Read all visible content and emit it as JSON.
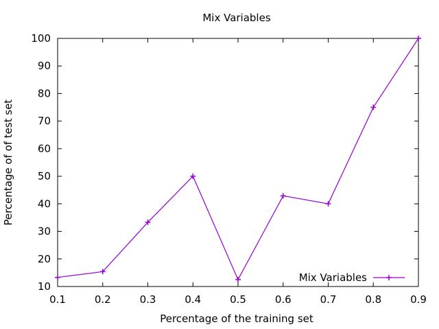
{
  "chart_data": {
    "type": "line",
    "title": "Mix Variables",
    "xlabel": "Percentage of the training set",
    "ylabel": "Percentage of of test set",
    "xlim": [
      0.1,
      0.9
    ],
    "ylim": [
      10,
      100
    ],
    "x_ticks": [
      "0.1",
      "0.2",
      "0.3",
      "0.4",
      "0.5",
      "0.6",
      "0.7",
      "0.8",
      "0.9"
    ],
    "y_ticks": [
      "10",
      "20",
      "30",
      "40",
      "50",
      "60",
      "70",
      "80",
      "90",
      "100"
    ],
    "grid": false,
    "legend_position": "bottom-right",
    "series": [
      {
        "name": "Mix Variables",
        "color": "#9400d3",
        "marker": "plus",
        "x": [
          0.1,
          0.2,
          0.3,
          0.4,
          0.5,
          0.6,
          0.7,
          0.8,
          0.9
        ],
        "values": [
          13.3,
          15.4,
          33.3,
          50.0,
          12.5,
          42.9,
          40.0,
          75.0,
          100.0
        ]
      }
    ]
  }
}
